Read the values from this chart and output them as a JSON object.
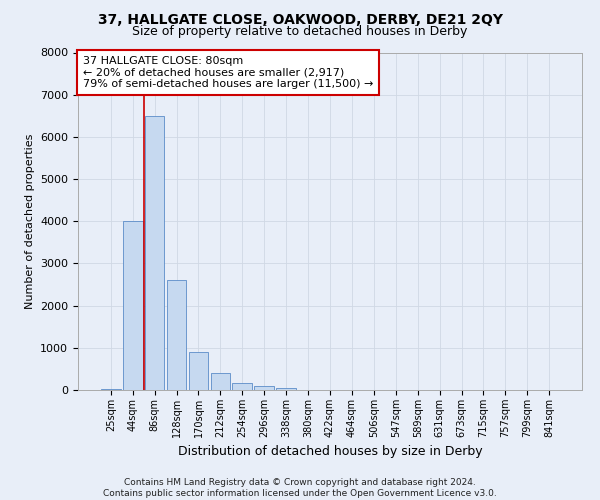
{
  "title": "37, HALLGATE CLOSE, OAKWOOD, DERBY, DE21 2QY",
  "subtitle": "Size of property relative to detached houses in Derby",
  "xlabel": "Distribution of detached houses by size in Derby",
  "ylabel": "Number of detached properties",
  "footer": "Contains HM Land Registry data © Crown copyright and database right 2024.\nContains public sector information licensed under the Open Government Licence v3.0.",
  "bin_labels": [
    "25sqm",
    "44sqm",
    "86sqm",
    "128sqm",
    "170sqm",
    "212sqm",
    "254sqm",
    "296sqm",
    "338sqm",
    "380sqm",
    "422sqm",
    "464sqm",
    "506sqm",
    "547sqm",
    "589sqm",
    "631sqm",
    "673sqm",
    "715sqm",
    "757sqm",
    "799sqm",
    "841sqm"
  ],
  "bar_values": [
    25,
    4000,
    6500,
    2600,
    900,
    400,
    175,
    100,
    50,
    10,
    0,
    0,
    0,
    0,
    0,
    0,
    0,
    0,
    0,
    0,
    0
  ],
  "bar_color": "#c6d9f0",
  "bar_edge_color": "#5b8cc8",
  "vline_x": 1.5,
  "vline_color": "#cc0000",
  "ylim": [
    0,
    8000
  ],
  "yticks": [
    0,
    1000,
    2000,
    3000,
    4000,
    5000,
    6000,
    7000,
    8000
  ],
  "annotation_text": "37 HALLGATE CLOSE: 80sqm\n← 20% of detached houses are smaller (2,917)\n79% of semi-detached houses are larger (11,500) →",
  "annotation_box_color": "#ffffff",
  "annotation_box_edgecolor": "#cc0000",
  "grid_color": "#d0d8e4",
  "background_color": "#e8eef8",
  "title_fontsize": 10,
  "subtitle_fontsize": 9
}
